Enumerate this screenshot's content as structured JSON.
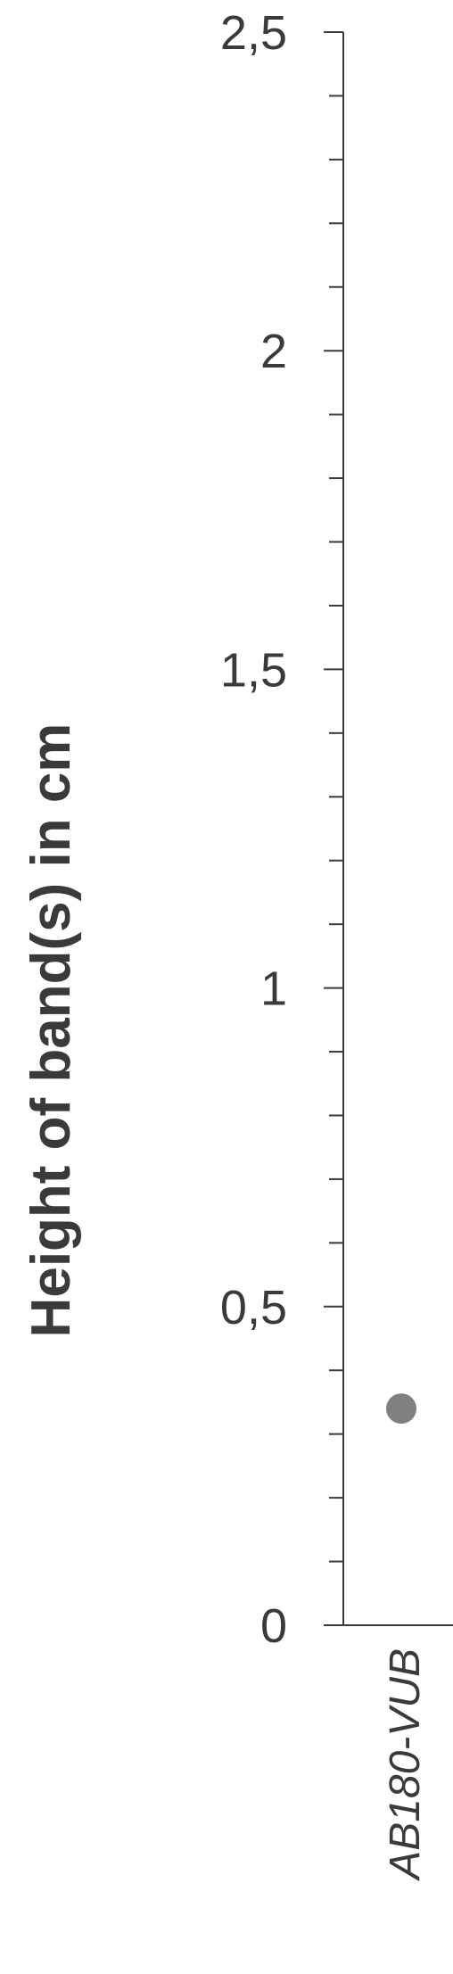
{
  "chart_data": {
    "type": "scatter",
    "title": "",
    "ylabel": "Height of band(s) in cm",
    "xlabel": "",
    "ylim": [
      0,
      2.5
    ],
    "major_ticks": [
      0,
      0.5,
      1,
      1.5,
      2,
      2.5
    ],
    "tick_labels": [
      "0",
      "0,5",
      "1",
      "1,5",
      "2",
      "2,5"
    ],
    "minor_step": 0.1,
    "categories": [
      "AB180-VUB"
    ],
    "series": [
      {
        "values": [
          0.34
        ],
        "color": "#808080"
      }
    ],
    "grid": false
  }
}
